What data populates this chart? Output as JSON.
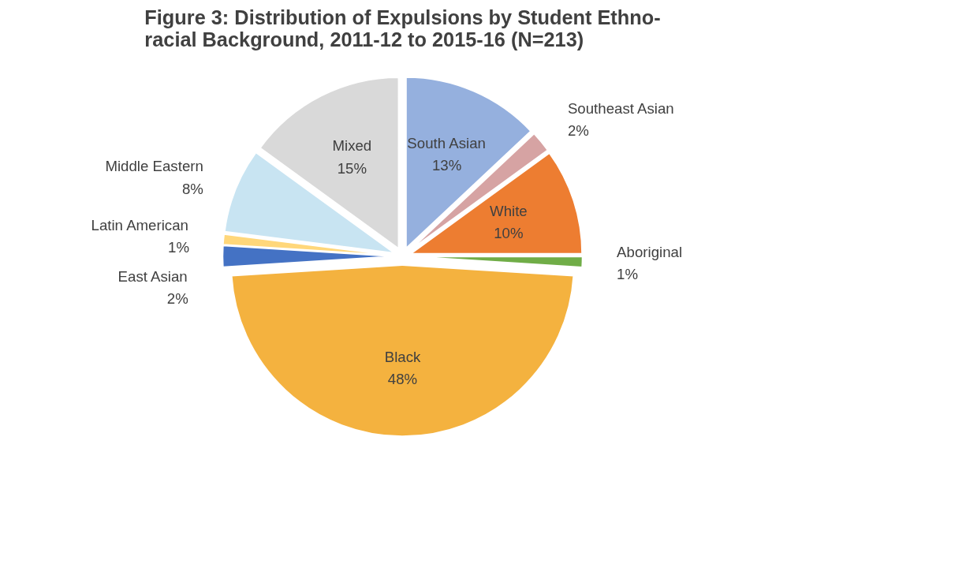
{
  "chart_data": {
    "type": "pie",
    "title": "Figure 3: Distribution of Expulsions by Student Ethno-\nracial Background, 2011-12 to 2015-16 (N=213)",
    "categories": [
      "South Asian",
      "Southeast Asian",
      "White",
      "Aboriginal",
      "Black",
      "East Asian",
      "Latin American",
      "Middle Eastern",
      "Mixed"
    ],
    "values": [
      13,
      2,
      10,
      1,
      48,
      2,
      1,
      8,
      15
    ],
    "value_labels": [
      "13%",
      "2%",
      "10%",
      "1%",
      "48%",
      "2%",
      "1%",
      "8%",
      "15%"
    ],
    "colors": [
      "#95b0de",
      "#d6a3a3",
      "#ed7d31",
      "#70ad47",
      "#f4b23f",
      "#4472c4",
      "#ffd77a",
      "#c8e4f2",
      "#d9d9d9"
    ]
  }
}
